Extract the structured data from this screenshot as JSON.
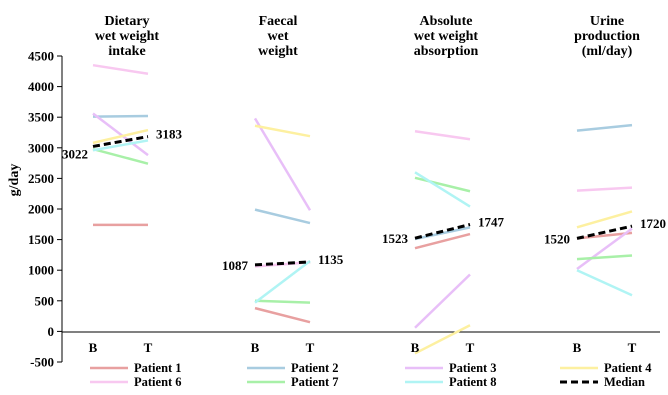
{
  "chart_data": {
    "type": "line",
    "ylabel": "g/day",
    "ylim": [
      -500,
      4500
    ],
    "yticks": [
      "-500",
      "0",
      "500",
      "1000",
      "1500",
      "2000",
      "2500",
      "3000",
      "3500",
      "4000",
      "4500"
    ],
    "x_labels": [
      "B",
      "T"
    ],
    "legend": {
      "placement": "bottom"
    },
    "colors": {
      "Patient 1": "#e8a0a0",
      "Patient 2": "#a8cce0",
      "Patient 3": "#e8bff8",
      "Patient 4": "#fdf0a0",
      "Patient 6": "#f8c8f0",
      "Patient 7": "#a8f0a8",
      "Patient 8": "#b0f4f4",
      "Median": "#000000"
    },
    "legend_entries": [
      "Patient 1",
      "Patient 2",
      "Patient 3",
      "Patient 4",
      "Patient 6",
      "Patient 7",
      "Patient 8",
      "Median"
    ],
    "panels": [
      {
        "title_lines": [
          "Dietary",
          "wet weight",
          "intake"
        ],
        "median_labels": [
          "3022",
          "3183"
        ],
        "series": [
          {
            "name": "Patient 1",
            "values": [
              1740,
              1740
            ]
          },
          {
            "name": "Patient 2",
            "values": [
              3510,
              3520
            ]
          },
          {
            "name": "Patient 3",
            "values": [
              3560,
              2880
            ]
          },
          {
            "name": "Patient 4",
            "values": [
              3080,
              3290
            ]
          },
          {
            "name": "Patient 6",
            "values": [
              4350,
              4210
            ]
          },
          {
            "name": "Patient 7",
            "values": [
              2980,
              2740
            ]
          },
          {
            "name": "Patient 8",
            "values": [
              2960,
              3120
            ]
          },
          {
            "name": "Median",
            "values": [
              3022,
              3183
            ]
          }
        ]
      },
      {
        "title_lines": [
          "Faecal",
          "wet",
          "weight"
        ],
        "median_labels": [
          "1087",
          "1135"
        ],
        "series": [
          {
            "name": "Patient 1",
            "values": [
              380,
              150
            ]
          },
          {
            "name": "Patient 2",
            "values": [
              1990,
              1770
            ]
          },
          {
            "name": "Patient 3",
            "values": [
              3480,
              1980
            ]
          },
          {
            "name": "Patient 4",
            "values": [
              3360,
              3190
            ]
          },
          {
            "name": "Patient 6",
            "values": [
              1060,
              1130
            ]
          },
          {
            "name": "Patient 7",
            "values": [
              500,
              470
            ]
          },
          {
            "name": "Patient 8",
            "values": [
              470,
              1150
            ]
          },
          {
            "name": "Median",
            "values": [
              1087,
              1135
            ]
          }
        ]
      },
      {
        "title_lines": [
          "Absolute",
          "wet weight",
          "absorption"
        ],
        "median_labels": [
          "1523",
          "1747"
        ],
        "series": [
          {
            "name": "Patient 1",
            "values": [
              1360,
              1590
            ]
          },
          {
            "name": "Patient 2",
            "values": [
              1510,
              1700
            ]
          },
          {
            "name": "Patient 3",
            "values": [
              60,
              930
            ]
          },
          {
            "name": "Patient 4",
            "values": [
              -360,
              100
            ]
          },
          {
            "name": "Patient 6",
            "values": [
              3270,
              3140
            ]
          },
          {
            "name": "Patient 7",
            "values": [
              2510,
              2290
            ]
          },
          {
            "name": "Patient 8",
            "values": [
              2600,
              2040
            ]
          },
          {
            "name": "Median",
            "values": [
              1523,
              1747
            ]
          }
        ]
      },
      {
        "title_lines": [
          "Urine",
          "production",
          "(ml/day)"
        ],
        "median_labels": [
          "1520",
          "1720"
        ],
        "series": [
          {
            "name": "Patient 1",
            "values": [
              1520,
              1610
            ]
          },
          {
            "name": "Patient 2",
            "values": [
              3280,
              3370
            ]
          },
          {
            "name": "Patient 3",
            "values": [
              1020,
              1680
            ]
          },
          {
            "name": "Patient 4",
            "values": [
              1700,
              1960
            ]
          },
          {
            "name": "Patient 6",
            "values": [
              2300,
              2350
            ]
          },
          {
            "name": "Patient 7",
            "values": [
              1180,
              1240
            ]
          },
          {
            "name": "Patient 8",
            "values": [
              1000,
              590
            ]
          },
          {
            "name": "Median",
            "values": [
              1520,
              1720
            ]
          }
        ]
      }
    ]
  }
}
